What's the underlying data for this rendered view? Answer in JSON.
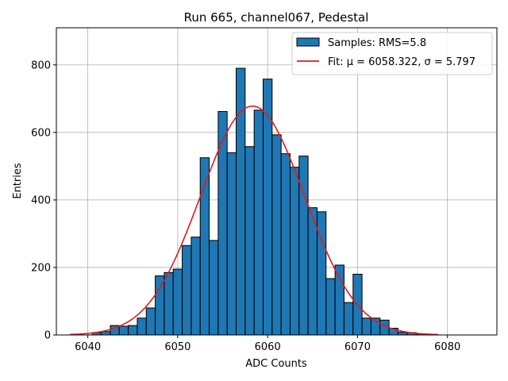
{
  "chart_data": {
    "type": "bar",
    "title": "Run 665, channel067, Pedestal",
    "xlabel": "ADC Counts",
    "ylabel": "Entries",
    "xlim": [
      6036.5,
      6085.5
    ],
    "ylim": [
      0,
      910
    ],
    "xticks": [
      6040,
      6050,
      6060,
      6070,
      6080
    ],
    "yticks": [
      0,
      200,
      400,
      600,
      800
    ],
    "grid": true,
    "legend_position": "top-right",
    "bin_width": 1,
    "series": [
      {
        "name": "Samples: RMS=5.8",
        "kind": "histogram",
        "color": "#1f77b4",
        "edge_color": "#000000",
        "bins": [
          {
            "x": 6041,
            "value": 7
          },
          {
            "x": 6042,
            "value": 10
          },
          {
            "x": 6043,
            "value": 28
          },
          {
            "x": 6044,
            "value": 26
          },
          {
            "x": 6045,
            "value": 28
          },
          {
            "x": 6046,
            "value": 50
          },
          {
            "x": 6047,
            "value": 80
          },
          {
            "x": 6048,
            "value": 175
          },
          {
            "x": 6049,
            "value": 185
          },
          {
            "x": 6050,
            "value": 195
          },
          {
            "x": 6051,
            "value": 265
          },
          {
            "x": 6052,
            "value": 290
          },
          {
            "x": 6053,
            "value": 525
          },
          {
            "x": 6054,
            "value": 280
          },
          {
            "x": 6055,
            "value": 662
          },
          {
            "x": 6056,
            "value": 540
          },
          {
            "x": 6057,
            "value": 790
          },
          {
            "x": 6058,
            "value": 558
          },
          {
            "x": 6059,
            "value": 666
          },
          {
            "x": 6060,
            "value": 758
          },
          {
            "x": 6061,
            "value": 593
          },
          {
            "x": 6062,
            "value": 537
          },
          {
            "x": 6063,
            "value": 497
          },
          {
            "x": 6064,
            "value": 530
          },
          {
            "x": 6065,
            "value": 377
          },
          {
            "x": 6066,
            "value": 365
          },
          {
            "x": 6067,
            "value": 167
          },
          {
            "x": 6068,
            "value": 207
          },
          {
            "x": 6069,
            "value": 96
          },
          {
            "x": 6070,
            "value": 180
          },
          {
            "x": 6071,
            "value": 50
          },
          {
            "x": 6072,
            "value": 50
          },
          {
            "x": 6073,
            "value": 44
          },
          {
            "x": 6074,
            "value": 20
          },
          {
            "x": 6075,
            "value": 8
          },
          {
            "x": 6076,
            "value": 7
          },
          {
            "x": 6077,
            "value": 3
          }
        ]
      },
      {
        "name": "Fit: μ = 6058.322, σ = 5.797",
        "kind": "gaussian-fit",
        "color": "#e41a1c",
        "mu": 6058.322,
        "sigma": 5.797,
        "amplitude": 678,
        "x_range": [
          6038,
          6079
        ]
      }
    ]
  }
}
